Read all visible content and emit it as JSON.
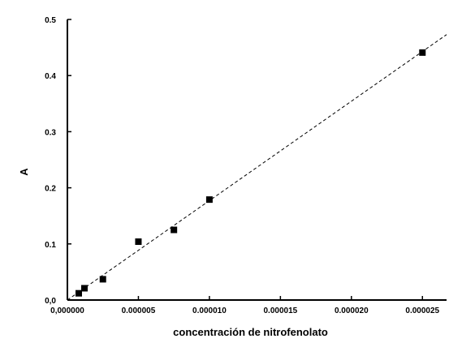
{
  "chart_data": {
    "type": "scatter",
    "title": "",
    "xlabel": "concentración de nitrofenolato",
    "ylabel": "A",
    "xlim": [
      0,
      2.67e-05
    ],
    "ylim": [
      0,
      0.5
    ],
    "x_ticks": [
      0,
      5e-06,
      1e-05,
      1.5e-05,
      2e-05,
      2.5e-05
    ],
    "x_tick_labels": [
      "0,000000",
      "0.000005",
      "0.000010",
      "0.000015",
      "0.000020",
      "0.000025"
    ],
    "y_ticks": [
      0,
      0.1,
      0.2,
      0.3,
      0.4,
      0.5
    ],
    "y_tick_labels": [
      "0,0",
      "0.1",
      "0.2",
      "0.3",
      "0.4",
      "0.5"
    ],
    "grid": false,
    "series": [
      {
        "marker": "square",
        "x": [
          8e-07,
          1.2e-06,
          2.5e-06,
          5e-06,
          7.5e-06,
          1e-05,
          2.5e-05
        ],
        "y": [
          0.012,
          0.021,
          0.037,
          0.104,
          0.125,
          0.179,
          0.441
        ]
      }
    ],
    "fit_line": {
      "style": "dashed",
      "x": [
        0,
        2.67e-05
      ],
      "y": [
        0,
        0.473
      ]
    }
  }
}
